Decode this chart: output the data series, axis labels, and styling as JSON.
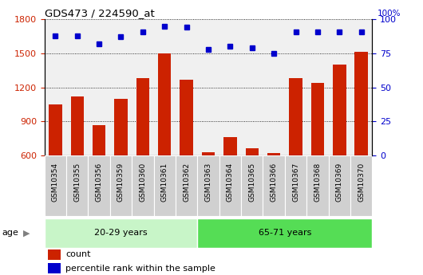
{
  "title": "GDS473 / 224590_at",
  "samples": [
    "GSM10354",
    "GSM10355",
    "GSM10356",
    "GSM10359",
    "GSM10360",
    "GSM10361",
    "GSM10362",
    "GSM10363",
    "GSM10364",
    "GSM10365",
    "GSM10366",
    "GSM10367",
    "GSM10368",
    "GSM10369",
    "GSM10370"
  ],
  "counts": [
    1050,
    1120,
    870,
    1100,
    1280,
    1500,
    1270,
    630,
    760,
    660,
    620,
    1280,
    1240,
    1400,
    1510
  ],
  "percentiles": [
    88,
    88,
    82,
    87,
    91,
    95,
    94,
    78,
    80,
    79,
    75,
    91,
    91,
    91,
    91
  ],
  "group1_label": "20-29 years",
  "group1_count": 7,
  "group2_label": "65-71 years",
  "group2_count": 8,
  "age_label": "age",
  "ylim_left": [
    600,
    1800
  ],
  "ylim_right": [
    0,
    100
  ],
  "yticks_left": [
    600,
    900,
    1200,
    1500,
    1800
  ],
  "yticks_right": [
    0,
    25,
    50,
    75,
    100
  ],
  "bar_color": "#cc2200",
  "dot_color": "#0000cc",
  "group1_bg": "#c8f5c8",
  "group2_bg": "#55dd55",
  "plot_bg": "#f0f0f0",
  "xtick_bg": "#d0d0d0",
  "legend_count_label": "count",
  "legend_pct_label": "percentile rank within the sample"
}
